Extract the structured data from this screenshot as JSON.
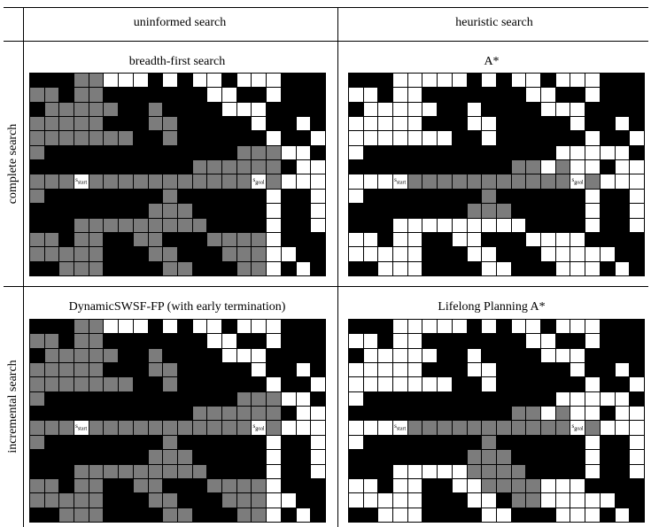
{
  "headers": {
    "col1": "uninformed search",
    "col2": "heuristic search",
    "row1": "complete search",
    "row2": "incremental search"
  },
  "markers": {
    "start": "s",
    "start_sub": "start",
    "goal": "s",
    "goal_sub": "goal"
  },
  "legend_colors": {
    "blocked": "#000000",
    "expanded": "#7c7c7c",
    "free": "#ffffff"
  },
  "panels": [
    {
      "title": "breadth-first search",
      "cols": 20,
      "rows": 14,
      "start": [
        3,
        7
      ],
      "goal": [
        15,
        7
      ],
      "maze": [
        "BBBGG...B.B..B...BBB",
        "GGBGGBBBBBBB..BB.BBB",
        "BGGGGGBBGBBBB...BBBB",
        "GGGGGBBBGGBBBBB.BB.B",
        "GGGGGGGBBGBBBBBB.BB.",
        "GBBBBBBBBBBBBBGGG..B",
        "BBBBBBBBBBBGGGGGGB..",
        "GGGGGGGGGGGGGGGGG...",
        "GBBBBBBBBGBBBBBB.BB.",
        "BBBBBBBBGGGBBBBB.BB.",
        "BBBGGGGGGGGGBBBB.BB.",
        "GGBGGBBGGBBBGGGG.BBB",
        "GGGGGBBBGGBBBGGG..BB",
        "BBGGGBBBBGGBBBGG.B.B"
      ]
    },
    {
      "title": "A*",
      "cols": 20,
      "rows": 14,
      "start": [
        3,
        7
      ],
      "goal": [
        15,
        7
      ],
      "maze": [
        "BBB.....B.B..B...BBB",
        "..B..BBBBBBB..BB.BBB",
        "B.....BB.BBBB...BBBB",
        ".....BBB..BBBBB.BB.B",
        ".......BB.BBBBBB.BB.",
        ".BBBBBBBBBBBBB.....B",
        "BBBBBBBBBBBGG.G..B..",
        "...GGGGGGGGGGGGGG...",
        ".BBBBBBBBGBBBBBB.BB.",
        "BBBBBBBBGGGBBBBB.BB.",
        "BBB.........BBBB.BB.",
        "..B..BB..BBB....BBBB",
        ".....BBB..BBB.....BB",
        "BB...BBBB..BBB...B.B"
      ]
    },
    {
      "title": "DynamicSWSF-FP (with early termination)",
      "cols": 20,
      "rows": 14,
      "start": [
        3,
        7
      ],
      "goal": [
        15,
        7
      ],
      "maze": [
        "BBBGG...B.B..B...BBB",
        "GGBGGBBBBBBB..BB.BBB",
        "BGGGGGBBGBBBB...BBBB",
        "GGGGGBBBGGBBBBB.BB.B",
        "GGGGGGGBBGBBBBBB.BB.",
        "GBBBBBBBBBBBBBGGG..B",
        "BBBBBBBBBBBGGGGGGB..",
        "GGGGGGGGGGGGGGGGG...",
        "GBBBBBBBBGBBBBBB.BB.",
        "BBBBBBBBGGGBBBBB.BB.",
        "BBBGGGGGGGGGBBBB.BB.",
        "GGBGGBBGGBBBGGGG.BBB",
        "GGGGGBBBGGBBBGGG..BB",
        "BBGGGBBBBGGBBBGG.B.B"
      ]
    },
    {
      "title": "Lifelong Planning A*",
      "cols": 20,
      "rows": 14,
      "start": [
        3,
        7
      ],
      "goal": [
        15,
        7
      ],
      "maze": [
        "BBB.....B.B..B...BBB",
        "..B..BBBBBBB..BB.BBB",
        "B.....BB.BBBB...BBBB",
        ".....BBB..BBBBB.BB.B",
        ".......BB.BBBBBB.BB.",
        ".BBBBBBBBBBBBB.....B",
        "BBBBBBBBBBBGG.G..B..",
        "...GGGGGGGGGGGGGG...",
        ".BBBBBBBBGBBBBBB.BB.",
        "BBBBBBBBGGGBBBBB.BB.",
        "BBB.....GGGGBBBB.BB.",
        "..B..BB..GGGG...BBBB",
        ".....BBB..BGG.....BB",
        "BB...BBBB..BBB...B.B"
      ]
    }
  ]
}
